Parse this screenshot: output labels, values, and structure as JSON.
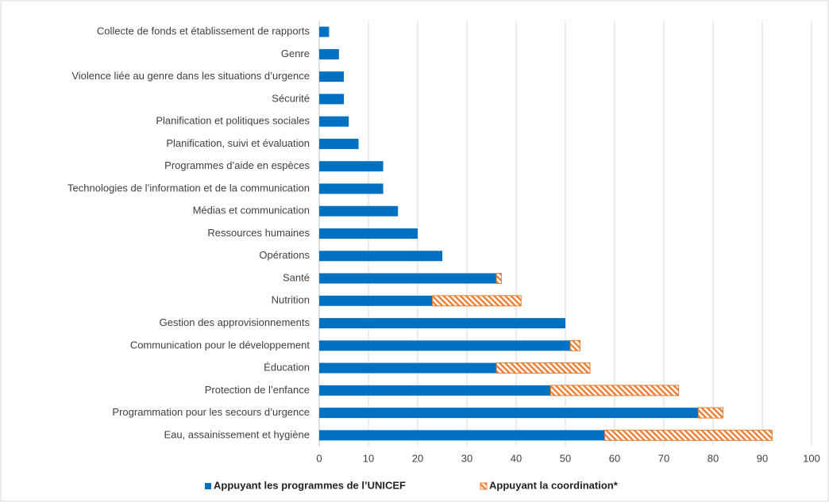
{
  "chart_data": {
    "type": "bar",
    "orientation": "horizontal",
    "stacked": true,
    "categories": [
      "Collecte de fonds et établissement de rapports",
      "Genre",
      "Violence liée au genre dans les situations d’urgence",
      "Sécurité",
      "Planification et politiques sociales",
      "Planification, suivi et évaluation",
      "Programmes d’aide en espèces",
      "Technologies de l’information et de la communication",
      "Médias et communication",
      "Ressources humaines",
      "Opérations",
      "Santé",
      "Nutrition",
      "Gestion des approvisionnements",
      "Communication pour le développement",
      "Éducation",
      "Protection de l’enfance",
      "Programmation pour les secours d’urgence",
      "Eau, assainissement et hygiène"
    ],
    "series": [
      {
        "name": "Appuyant les programmes de l’UNICEF",
        "color": "#0070c0",
        "values": [
          2,
          4,
          5,
          5,
          6,
          8,
          13,
          13,
          16,
          20,
          25,
          36,
          23,
          50,
          51,
          36,
          47,
          77,
          58
        ]
      },
      {
        "name": "Appuyant la coordination*",
        "color": "#ed7d31",
        "pattern": "hatched",
        "values": [
          0,
          0,
          0,
          0,
          0,
          0,
          0,
          0,
          0,
          0,
          0,
          1,
          18,
          0,
          2,
          19,
          26,
          5,
          34
        ]
      }
    ],
    "xlim": [
      0,
      100
    ],
    "xticks": [
      0,
      10,
      20,
      30,
      40,
      50,
      60,
      70,
      80,
      90,
      100
    ],
    "grid": true,
    "legend": "bottom"
  }
}
